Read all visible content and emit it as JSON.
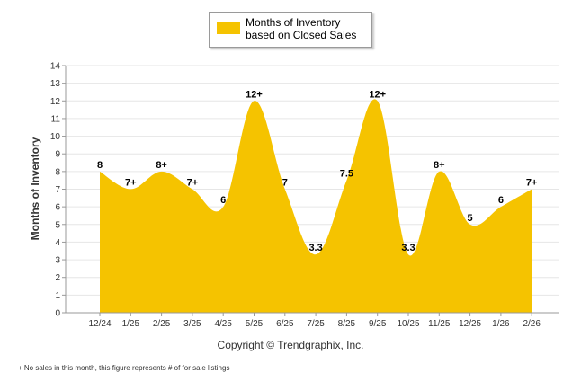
{
  "colors": {
    "fill": "#F5C300",
    "grid": "#e6e6e6",
    "axis": "#999999",
    "text": "#333333"
  },
  "legend": {
    "label": "Months of Inventory based on Closed Sales"
  },
  "copyright": "Copyright © Trendgraphix, Inc.",
  "footnote": "+ No sales in this month, this figure represents # of for sale listings",
  "chart_data": {
    "type": "area",
    "ylabel": "Months of Inventory",
    "xlabel": "",
    "ylim": [
      0,
      14
    ],
    "yticks": [
      0,
      1,
      2,
      3,
      4,
      5,
      6,
      7,
      8,
      9,
      10,
      11,
      12,
      13,
      14
    ],
    "grid": true,
    "legend_position": "top-center",
    "categories": [
      "12/24",
      "1/25",
      "2/25",
      "3/25",
      "4/25",
      "5/25",
      "6/25",
      "7/25",
      "8/25",
      "9/25",
      "10/25",
      "11/25",
      "12/25",
      "1/26",
      "2/26"
    ],
    "series": [
      {
        "name": "Months of Inventory based on Closed Sales",
        "values": [
          8,
          7,
          8,
          7,
          6,
          12,
          7,
          3.3,
          7.5,
          12,
          3.3,
          8,
          5,
          6,
          7
        ],
        "labels": [
          "8",
          "7+",
          "8+",
          "7+",
          "6",
          "12+",
          "7",
          "3.3",
          "7.5",
          "12+",
          "3.3",
          "8+",
          "5",
          "6",
          "7+"
        ]
      }
    ]
  }
}
